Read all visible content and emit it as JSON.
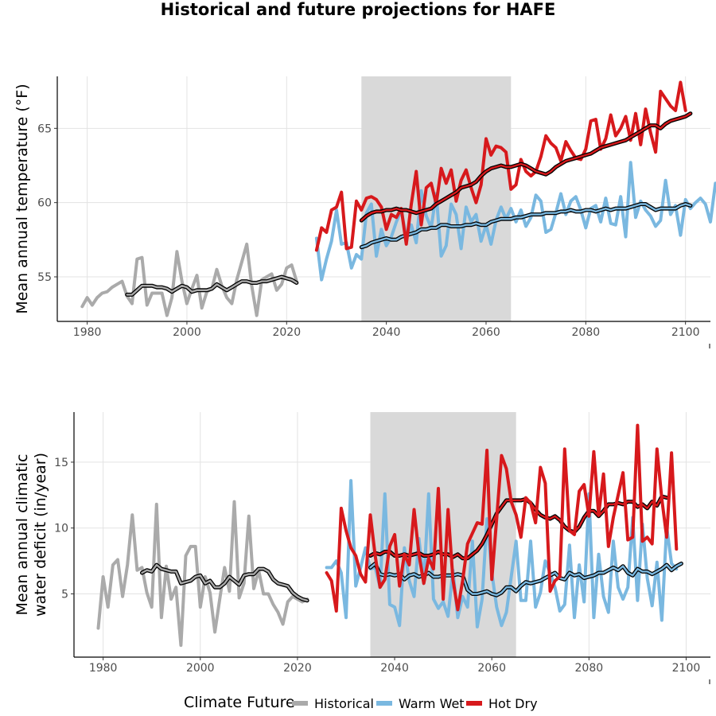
{
  "title": "Historical and future projections for HAFE",
  "legend": {
    "title": "Climate Future",
    "items": [
      {
        "label": "Historical",
        "color": "#aaaaaa"
      },
      {
        "label": "Warm Wet",
        "color": "#7ab8e0"
      },
      {
        "label": "Hot Dry",
        "color": "#d7191c"
      }
    ]
  },
  "chart_data": [
    {
      "type": "line",
      "ylabel": "Mean annual temperature (°F)",
      "xlim": [
        1974,
        2105
      ],
      "ylim": [
        52.0,
        68.5
      ],
      "xticks": [
        1980,
        2000,
        2020,
        2040,
        2060,
        2080,
        2100
      ],
      "yticks": [
        55,
        60,
        65
      ],
      "shaded_period": [
        2035,
        2065
      ],
      "grid": true,
      "series": [
        {
          "name": "Historical",
          "color": "#aaaaaa",
          "x_start": 1979,
          "values": [
            53.0,
            53.6,
            53.1,
            53.6,
            53.9,
            54.0,
            54.3,
            54.5,
            54.7,
            53.7,
            53.2,
            56.2,
            56.3,
            53.1,
            53.9,
            53.9,
            53.9,
            52.4,
            53.6,
            56.7,
            54.7,
            53.2,
            54.2,
            55.1,
            52.9,
            54.0,
            54.2,
            55.5,
            54.4,
            53.6,
            53.2,
            54.8,
            56.0,
            57.2,
            54.4,
            52.4,
            54.8,
            55.0,
            55.2,
            54.1,
            54.5,
            55.6,
            55.8,
            54.7
          ]
        },
        {
          "name": "Historical (rolling mean)",
          "color": "#aaaaaa",
          "smooth": true,
          "x_start": 1988,
          "values": [
            53.8,
            53.8,
            54.1,
            54.4,
            54.4,
            54.4,
            54.3,
            54.3,
            54.2,
            54.0,
            54.2,
            54.4,
            54.3,
            54.0,
            54.1,
            54.1,
            54.1,
            54.2,
            54.5,
            54.3,
            54.1,
            54.3,
            54.5,
            54.7,
            54.7,
            54.6,
            54.6,
            54.7,
            54.7,
            54.8,
            54.9,
            55.0,
            54.9,
            54.8,
            54.6
          ]
        },
        {
          "name": "Warm Wet",
          "color": "#7ab8e0",
          "x_start": 2026,
          "values": [
            57.6,
            54.8,
            56.2,
            57.4,
            59.5,
            57.2,
            57.3,
            55.6,
            56.5,
            56.2,
            59.3,
            59.9,
            56.4,
            58.2,
            57.1,
            57.7,
            58.7,
            59.5,
            57.6,
            58.5,
            57.3,
            60.8,
            59.1,
            58.3,
            60.6,
            56.4,
            57.1,
            59.9,
            59.2,
            56.9,
            59.7,
            58.7,
            59.2,
            57.4,
            58.5,
            57.2,
            58.8,
            59.7,
            58.9,
            59.6,
            58.7,
            59.5,
            58.4,
            59.0,
            60.5,
            60.1,
            58.0,
            58.2,
            59.3,
            60.6,
            59.2,
            60.1,
            60.4,
            59.5,
            58.3,
            59.6,
            59.8,
            58.7,
            60.3,
            58.6,
            58.5,
            60.4,
            57.7,
            62.7,
            59.0,
            60.1,
            59.5,
            59.1,
            58.4,
            58.8,
            61.5,
            59.2,
            59.8,
            57.8,
            60.2,
            59.6,
            60.0,
            60.3,
            59.9,
            58.7,
            61.3,
            60.0,
            61.0
          ]
        },
        {
          "name": "Warm Wet (rolling mean)",
          "color": "#7ab8e0",
          "smooth": true,
          "x_start": 2035,
          "values": [
            57.0,
            57.1,
            57.3,
            57.4,
            57.5,
            57.6,
            57.5,
            57.5,
            57.7,
            57.8,
            57.9,
            58.0,
            58.2,
            58.2,
            58.3,
            58.3,
            58.5,
            58.5,
            58.4,
            58.4,
            58.4,
            58.5,
            58.5,
            58.6,
            58.5,
            58.5,
            58.7,
            58.8,
            58.9,
            58.9,
            58.9,
            59.0,
            59.0,
            59.1,
            59.2,
            59.2,
            59.2,
            59.3,
            59.3,
            59.3,
            59.4,
            59.4,
            59.5,
            59.4,
            59.4,
            59.5,
            59.5,
            59.4,
            59.5,
            59.6,
            59.5,
            59.6,
            59.6,
            59.6,
            59.7,
            59.8,
            59.9,
            59.9,
            59.7,
            59.5,
            59.6,
            59.6,
            59.6,
            59.6,
            59.8,
            59.9,
            59.8
          ]
        },
        {
          "name": "Hot Dry",
          "color": "#d7191c",
          "x_start": 2026,
          "values": [
            56.8,
            58.3,
            58.0,
            59.5,
            59.7,
            60.7,
            56.9,
            57.0,
            60.1,
            59.5,
            60.3,
            60.4,
            60.2,
            59.7,
            58.2,
            59.2,
            59.0,
            59.6,
            57.2,
            59.9,
            62.1,
            58.5,
            61.0,
            61.3,
            59.9,
            62.3,
            61.3,
            62.2,
            60.1,
            61.5,
            62.2,
            61.0,
            60.0,
            61.2,
            64.3,
            63.2,
            63.8,
            63.7,
            63.4,
            60.9,
            61.2,
            62.9,
            62.1,
            61.8,
            62.1,
            63.1,
            64.5,
            64.0,
            63.7,
            62.8,
            64.1,
            63.5,
            63.0,
            62.9,
            63.6,
            65.5,
            65.6,
            63.6,
            64.3,
            65.9,
            64.5,
            65.0,
            65.8,
            64.2,
            66.0,
            63.9,
            66.3,
            64.7,
            63.4,
            67.5,
            67.0,
            66.5,
            66.2,
            68.1,
            66.2
          ]
        },
        {
          "name": "Hot Dry (rolling mean)",
          "color": "#d7191c",
          "smooth": true,
          "x_start": 2035,
          "values": [
            58.8,
            59.1,
            59.3,
            59.4,
            59.4,
            59.5,
            59.5,
            59.6,
            59.5,
            59.5,
            59.4,
            59.3,
            59.4,
            59.5,
            59.6,
            59.9,
            60.1,
            60.3,
            60.5,
            60.7,
            61.0,
            61.1,
            61.2,
            61.4,
            61.8,
            62.1,
            62.3,
            62.4,
            62.5,
            62.4,
            62.4,
            62.5,
            62.6,
            62.5,
            62.3,
            62.1,
            62.0,
            61.9,
            62.1,
            62.4,
            62.6,
            62.8,
            62.9,
            63.0,
            63.1,
            63.2,
            63.3,
            63.5,
            63.7,
            63.8,
            63.9,
            64.0,
            64.1,
            64.2,
            64.4,
            64.6,
            64.8,
            65.0,
            65.2,
            65.2,
            65.0,
            65.3,
            65.5,
            65.6,
            65.7,
            65.8,
            66.0
          ]
        }
      ]
    },
    {
      "type": "line",
      "ylabel": [
        "Mean annual climatic",
        "water deficit (in/year)"
      ],
      "xlim": [
        1974,
        2105
      ],
      "ylim": [
        0.2,
        18.8
      ],
      "xticks": [
        1980,
        2000,
        2020,
        2040,
        2060,
        2080,
        2100
      ],
      "yticks": [
        5,
        10,
        15
      ],
      "shaded_period": [
        2035,
        2065
      ],
      "grid": true,
      "series": [
        {
          "name": "Historical",
          "color": "#aaaaaa",
          "x_start": 1979,
          "values": [
            2.4,
            6.3,
            4.0,
            7.2,
            7.6,
            4.8,
            7.2,
            11.0,
            6.8,
            7.0,
            5.1,
            4.0,
            11.8,
            3.2,
            7.1,
            4.6,
            5.5,
            1.1,
            7.9,
            8.6,
            8.6,
            4.0,
            6.3,
            5.1,
            2.1,
            4.6,
            7.0,
            5.2,
            12.0,
            4.7,
            5.8,
            10.9,
            5.4,
            6.8,
            5.0,
            5.0,
            4.2,
            3.6,
            2.7,
            4.4,
            4.8,
            4.6,
            4.4,
            4.6
          ]
        },
        {
          "name": "Historical (rolling mean)",
          "color": "#aaaaaa",
          "smooth": true,
          "x_start": 1988,
          "values": [
            6.6,
            6.8,
            6.7,
            7.2,
            6.9,
            6.8,
            6.7,
            6.7,
            5.8,
            5.9,
            6.0,
            6.3,
            6.4,
            5.8,
            6.0,
            5.5,
            5.5,
            5.8,
            6.3,
            6.0,
            5.7,
            6.4,
            6.5,
            6.5,
            6.9,
            6.9,
            6.7,
            6.1,
            5.8,
            5.7,
            5.6,
            5.1,
            4.8,
            4.6,
            4.5
          ]
        },
        {
          "name": "Warm Wet",
          "color": "#7ab8e0",
          "x_start": 2026,
          "values": [
            7.0,
            7.0,
            7.5,
            6.6,
            3.2,
            13.6,
            5.6,
            7.0,
            8.5,
            6.9,
            7.0,
            5.5,
            12.6,
            4.2,
            4.0,
            2.6,
            8.5,
            6.0,
            4.8,
            9.2,
            5.8,
            12.6,
            4.6,
            3.9,
            4.4,
            3.3,
            6.8,
            3.2,
            4.8,
            4.0,
            9.0,
            2.5,
            4.6,
            10.7,
            6.6,
            4.0,
            2.6,
            3.6,
            6.3,
            9.0,
            4.5,
            4.5,
            9.0,
            4.0,
            5.1,
            7.5,
            6.6,
            5.5,
            3.7,
            4.2,
            8.7,
            3.2,
            7.2,
            4.4,
            12.6,
            3.2,
            8.0,
            4.8,
            3.6,
            9.0,
            5.5,
            4.6,
            5.5,
            10.8,
            4.5,
            10.3,
            6.2,
            4.1,
            7.4,
            3.0,
            10.1,
            7.3,
            6.9
          ]
        },
        {
          "name": "Warm Wet (rolling mean)",
          "color": "#7ab8e0",
          "smooth": true,
          "x_start": 2035,
          "values": [
            7.0,
            7.3,
            6.5,
            6.4,
            6.5,
            6.4,
            6.5,
            6.1,
            6.4,
            6.5,
            6.3,
            6.4,
            6.6,
            6.3,
            6.3,
            6.4,
            6.4,
            6.4,
            6.5,
            6.4,
            5.3,
            5.0,
            5.0,
            5.1,
            5.2,
            5.0,
            4.9,
            5.1,
            5.5,
            5.5,
            5.2,
            5.6,
            5.9,
            5.8,
            5.9,
            6.0,
            6.2,
            6.4,
            6.6,
            6.2,
            6.1,
            6.6,
            6.4,
            6.5,
            6.2,
            6.3,
            6.4,
            6.6,
            6.6,
            6.8,
            7.0,
            6.8,
            7.1,
            6.6,
            6.4,
            6.9,
            6.7,
            6.7,
            6.5,
            6.7,
            6.9,
            7.2,
            6.8,
            7.1,
            7.3
          ]
        },
        {
          "name": "Hot Dry (rolling mean)",
          "color": "#d7191c",
          "smooth": true,
          "x_start": 2035,
          "values": [
            7.9,
            8.1,
            8.0,
            8.2,
            8.2,
            7.9,
            7.9,
            8.0,
            7.9,
            8.0,
            8.1,
            7.9,
            7.9,
            8.0,
            8.2,
            8.0,
            8.0,
            7.8,
            8.0,
            7.7,
            7.7,
            8.0,
            8.3,
            8.8,
            9.5,
            10.3,
            11.1,
            11.6,
            12.1,
            12.1,
            12.1,
            12.1,
            12.2,
            11.9,
            11.4,
            11.0,
            10.8,
            10.7,
            10.9,
            10.6,
            10.1,
            9.8,
            9.7,
            10.1,
            10.8,
            11.3,
            11.3,
            10.9,
            11.3,
            11.8,
            11.8,
            11.9,
            11.8,
            12.0,
            12.0,
            11.6,
            11.8,
            11.5,
            12.0,
            11.7,
            12.4,
            12.3
          ]
        },
        {
          "name": "Hot Dry",
          "color": "#d7191c",
          "x_start": 2026,
          "values": [
            6.6,
            6.0,
            3.7,
            11.5,
            9.8,
            8.5,
            7.9,
            6.5,
            5.9,
            11.0,
            7.9,
            5.5,
            6.1,
            8.6,
            9.5,
            5.6,
            8.0,
            7.2,
            11.4,
            8.0,
            5.8,
            7.7,
            6.9,
            13.0,
            4.6,
            11.4,
            6.1,
            3.8,
            6.0,
            8.8,
            9.6,
            10.4,
            10.3,
            15.9,
            6.1,
            10.7,
            15.5,
            14.5,
            12.0,
            11.0,
            9.3,
            12.3,
            11.9,
            10.4,
            14.6,
            13.4,
            5.2,
            6.0,
            6.3,
            16.0,
            9.8,
            9.5,
            12.8,
            13.3,
            10.9,
            15.8,
            11.0,
            14.1,
            8.6,
            10.8,
            12.5,
            14.2,
            9.1,
            9.3,
            17.8,
            9.0,
            9.3,
            8.8,
            16.0,
            12.2,
            9.3,
            15.7,
            8.4
          ]
        }
      ]
    }
  ]
}
